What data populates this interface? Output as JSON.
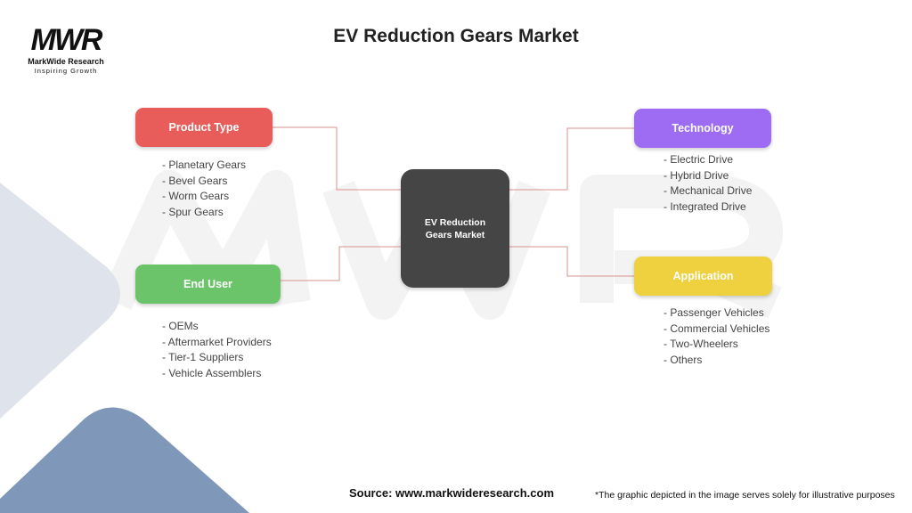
{
  "logo": {
    "mark": "MWR",
    "name": "MarkWide Research",
    "tagline": "Inspiring Growth"
  },
  "title": "EV Reduction Gears Market",
  "center": {
    "label": "EV Reduction Gears Market",
    "color": "#454545"
  },
  "categories": [
    {
      "label": "Product Type",
      "color": "#e85c5a",
      "items": [
        "- Planetary Gears",
        "- Bevel Gears",
        "- Worm Gears",
        "- Spur Gears"
      ]
    },
    {
      "label": "End User",
      "color": "#6cc46a",
      "items": [
        "- OEMs",
        "- Aftermarket Providers",
        "- Tier-1 Suppliers",
        "- Vehicle Assemblers"
      ]
    },
    {
      "label": "Technology",
      "color": "#9d6cf2",
      "items": [
        "- Electric Drive",
        "- Hybrid Drive",
        "- Mechanical Drive",
        "- Integrated Drive"
      ]
    },
    {
      "label": "Application",
      "color": "#efd03e",
      "items": [
        "- Passenger Vehicles",
        "- Commercial Vehicles",
        "- Two-Wheelers",
        "- Others"
      ]
    }
  ],
  "connector_color": "#d9908e",
  "footer": {
    "source": "Source: www.markwideresearch.com",
    "note": "*The graphic depicted in the image serves solely for illustrative purposes"
  }
}
